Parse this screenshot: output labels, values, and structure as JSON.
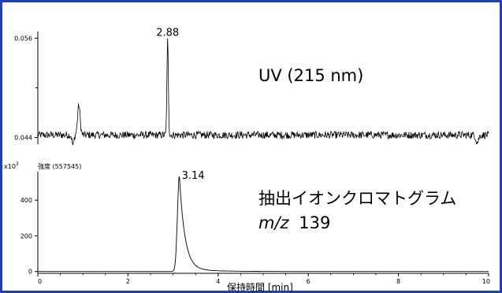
{
  "chart_data": [
    {
      "type": "line",
      "name": "uv",
      "annotation": "UV (215 nm)",
      "xlim": [
        0,
        10
      ],
      "ylim": [
        0.0432,
        0.0568
      ],
      "yticks": [
        {
          "value": 0.056,
          "label": "0.056"
        },
        {
          "value": 0.044,
          "label": "0.044"
        }
      ],
      "peak_label": {
        "x": 2.88,
        "y": 0.0558,
        "text": "2.88"
      },
      "baseline": 0.0443,
      "noise": 0.00045,
      "peaks": [
        {
          "x": 2.88,
          "height": 0.0115,
          "width": 0.022
        },
        {
          "x": 0.91,
          "height": 0.0036,
          "width": 0.04
        }
      ],
      "dips": [
        {
          "x": 0.78,
          "depth": 0.0012,
          "width": 0.03
        },
        {
          "x": 9.75,
          "depth": 0.0009,
          "width": 0.04
        }
      ]
    },
    {
      "type": "line",
      "name": "xic",
      "title": "強度 (557545)",
      "multiplier": "x10",
      "multiplier_exp": "3",
      "annotation_line1": "抽出イオンクロマトグラム",
      "annotation_line2_italic": "m/z",
      "annotation_line2_rest": "139",
      "xlim": [
        0,
        10
      ],
      "ylim": [
        -10,
        560
      ],
      "yticks": [
        {
          "value": 0,
          "label": "0"
        },
        {
          "value": 200,
          "label": "200"
        },
        {
          "value": 400,
          "label": "400"
        }
      ],
      "xticks": [
        {
          "value": 0,
          "label": "0"
        },
        {
          "value": 2,
          "label": "2"
        },
        {
          "value": 4,
          "label": "4"
        },
        {
          "value": 6,
          "label": "6"
        },
        {
          "value": 8,
          "label": "8"
        },
        {
          "value": 10,
          "label": "10"
        }
      ],
      "xlabel": "保持時間 [min]",
      "peak_label": {
        "x": 3.14,
        "y": 530,
        "text": "3.14"
      },
      "peak": {
        "x": 3.14,
        "height": 540,
        "rise_width": 0.06,
        "tail_tau": 0.12,
        "tail2_tau": 0.6,
        "tail2_frac": 0.03
      }
    }
  ]
}
